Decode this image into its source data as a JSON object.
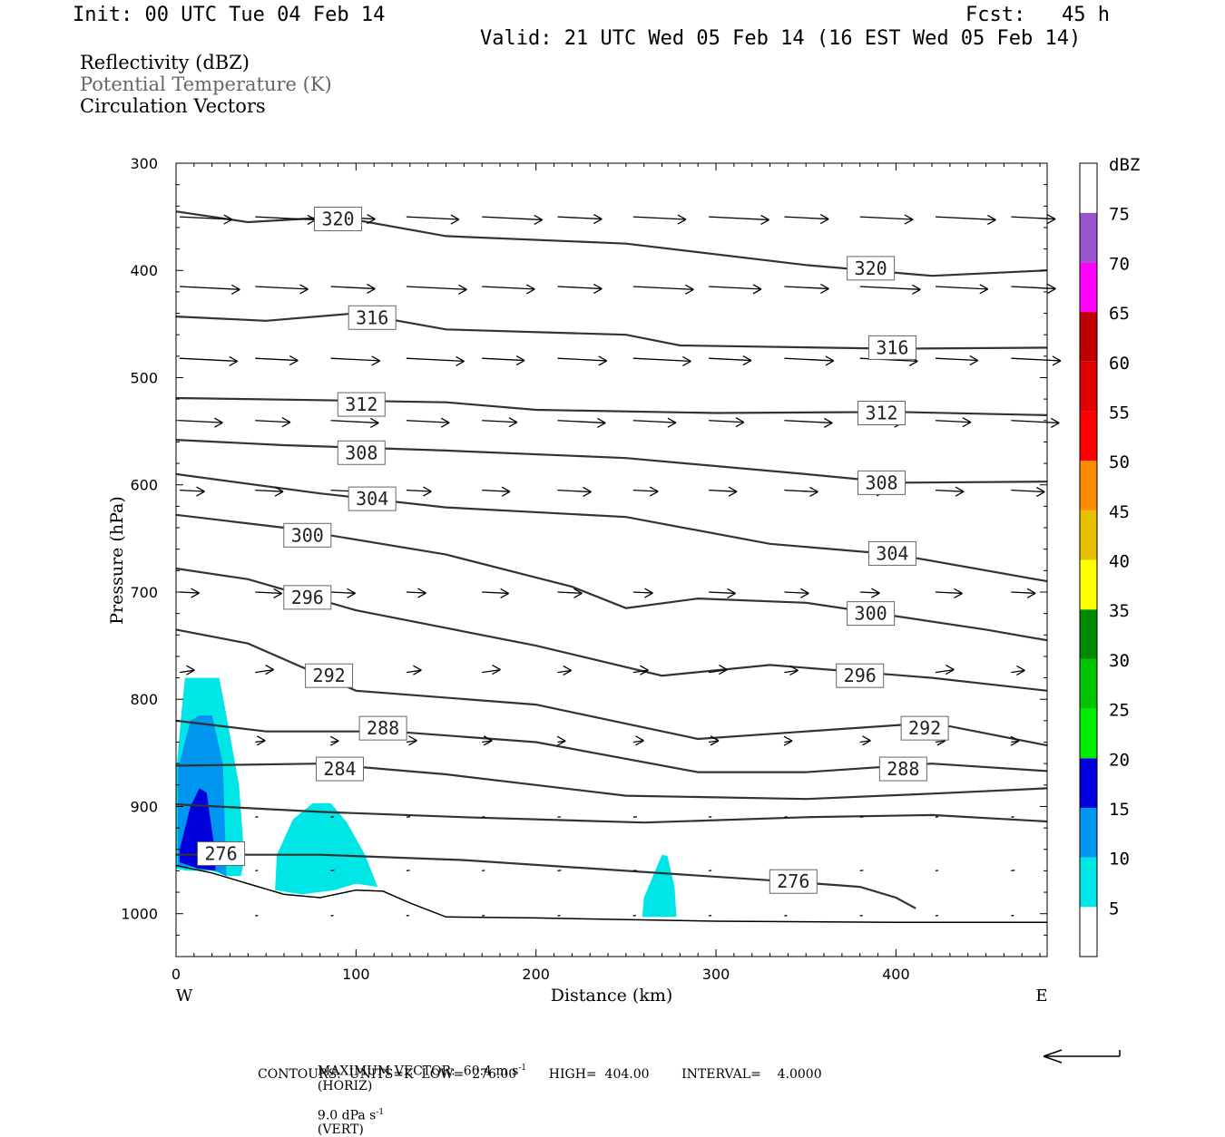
{
  "header": {
    "init": "Init: 00 UTC Tue 04 Feb 14",
    "fcst": "Fcst:   45 h",
    "valid": "Valid: 21 UTC Wed 05 Feb 14 (16 EST Wed 05 Feb 14)",
    "fields": [
      {
        "label": "Reflectivity (dBZ)",
        "color": "#000000"
      },
      {
        "label": "Potential Temperature (K)",
        "color": "#666666"
      },
      {
        "label": "Circulation Vectors",
        "color": "#000000"
      }
    ]
  },
  "footer": {
    "max_vector_line": "MAXIMUM VECTOR:  60.4 m s",
    "max_vector_horiz": "(HORIZ)",
    "max_vector_vert": "9.0 dPa s",
    "max_vector_vert_unit": "(VERT)",
    "contours_line": "CONTOURS:  UNITS=K  LOW=  276.00        HIGH=  404.00        INTERVAL=    4.0000"
  },
  "chart_data": {
    "type": "cross-section",
    "xlabel": "Distance (km)",
    "ylabel": "Pressure (hPa)",
    "xlim": [
      0,
      484
    ],
    "ylim": [
      1040,
      300
    ],
    "x_ticks": [
      0,
      100,
      200,
      300,
      400
    ],
    "y_ticks": [
      300,
      400,
      500,
      600,
      700,
      800,
      900,
      1000
    ],
    "x_end_labels": {
      "left": "W",
      "right": "E"
    },
    "colorbar": {
      "unit": "dBZ",
      "levels": [
        5,
        10,
        15,
        20,
        25,
        30,
        35,
        40,
        45,
        50,
        55,
        60,
        65,
        70,
        75
      ],
      "colors": [
        "#00e5e5",
        "#0095ee",
        "#0000dd",
        "#00ee00",
        "#00c400",
        "#008a00",
        "#ffff00",
        "#e8c000",
        "#ff8c00",
        "#ff0000",
        "#e00000",
        "#c00000",
        "#ff00ff",
        "#9a55cc"
      ]
    },
    "theta_contours": [
      {
        "value": 320,
        "label_at": [
          [
            90,
            352
          ],
          [
            386,
            398
          ]
        ],
        "points": [
          [
            0,
            345
          ],
          [
            40,
            355
          ],
          [
            90,
            350
          ],
          [
            150,
            368
          ],
          [
            250,
            375
          ],
          [
            350,
            395
          ],
          [
            420,
            405
          ],
          [
            484,
            400
          ]
        ]
      },
      {
        "value": 316,
        "label_at": [
          [
            109,
            444
          ],
          [
            398,
            472
          ]
        ],
        "points": [
          [
            0,
            443
          ],
          [
            50,
            447
          ],
          [
            100,
            440
          ],
          [
            150,
            455
          ],
          [
            250,
            460
          ],
          [
            280,
            470
          ],
          [
            400,
            473
          ],
          [
            484,
            472
          ]
        ]
      },
      {
        "value": 312,
        "label_at": [
          [
            103,
            525
          ],
          [
            392,
            533
          ]
        ],
        "points": [
          [
            0,
            519
          ],
          [
            80,
            521
          ],
          [
            150,
            523
          ],
          [
            200,
            530
          ],
          [
            300,
            533
          ],
          [
            400,
            532
          ],
          [
            484,
            535
          ]
        ]
      },
      {
        "value": 308,
        "label_at": [
          [
            103,
            570
          ],
          [
            392,
            598
          ]
        ],
        "points": [
          [
            0,
            558
          ],
          [
            60,
            563
          ],
          [
            150,
            568
          ],
          [
            250,
            575
          ],
          [
            350,
            590
          ],
          [
            400,
            598
          ],
          [
            484,
            597
          ]
        ]
      },
      {
        "value": 304,
        "label_at": [
          [
            109,
            613
          ],
          [
            398,
            664
          ]
        ],
        "points": [
          [
            0,
            590
          ],
          [
            80,
            608
          ],
          [
            150,
            621
          ],
          [
            250,
            630
          ],
          [
            330,
            655
          ],
          [
            400,
            665
          ],
          [
            484,
            690
          ]
        ]
      },
      {
        "value": 300,
        "label_at": [
          [
            73,
            647
          ],
          [
            386,
            720
          ]
        ],
        "points": [
          [
            0,
            628
          ],
          [
            60,
            640
          ],
          [
            150,
            665
          ],
          [
            220,
            695
          ],
          [
            250,
            715
          ],
          [
            290,
            706
          ],
          [
            350,
            710
          ],
          [
            450,
            735
          ],
          [
            484,
            745
          ]
        ]
      },
      {
        "value": 296,
        "label_at": [
          [
            73,
            705
          ],
          [
            380,
            778
          ]
        ],
        "points": [
          [
            0,
            678
          ],
          [
            40,
            688
          ],
          [
            100,
            717
          ],
          [
            200,
            750
          ],
          [
            270,
            778
          ],
          [
            330,
            768
          ],
          [
            420,
            780
          ],
          [
            484,
            792
          ]
        ]
      },
      {
        "value": 292,
        "label_at": [
          [
            85,
            778
          ],
          [
            416,
            827
          ]
        ],
        "points": [
          [
            0,
            735
          ],
          [
            40,
            748
          ],
          [
            100,
            792
          ],
          [
            200,
            805
          ],
          [
            290,
            837
          ],
          [
            350,
            830
          ],
          [
            420,
            822
          ],
          [
            484,
            843
          ]
        ]
      },
      {
        "value": 288,
        "label_at": [
          [
            115,
            827
          ],
          [
            404,
            865
          ]
        ],
        "points": [
          [
            0,
            820
          ],
          [
            50,
            830
          ],
          [
            120,
            830
          ],
          [
            200,
            840
          ],
          [
            290,
            868
          ],
          [
            350,
            868
          ],
          [
            420,
            860
          ],
          [
            484,
            867
          ]
        ]
      },
      {
        "value": 284,
        "label_at": [
          [
            91,
            865
          ]
        ],
        "points": [
          [
            0,
            862
          ],
          [
            80,
            860
          ],
          [
            150,
            870
          ],
          [
            250,
            890
          ],
          [
            350,
            893
          ],
          [
            420,
            888
          ],
          [
            484,
            883
          ]
        ]
      },
      {
        "value": 280,
        "points": [
          [
            0,
            898
          ],
          [
            80,
            905
          ],
          [
            160,
            910
          ],
          [
            260,
            915
          ],
          [
            350,
            910
          ],
          [
            420,
            908
          ],
          [
            484,
            914
          ]
        ]
      },
      {
        "value": 276,
        "label_at": [
          [
            25,
            944
          ],
          [
            343,
            970
          ]
        ],
        "points": [
          [
            0,
            945
          ],
          [
            80,
            945
          ],
          [
            160,
            950
          ],
          [
            250,
            960
          ],
          [
            340,
            970
          ],
          [
            380,
            975
          ],
          [
            400,
            985
          ],
          [
            411,
            995
          ]
        ]
      }
    ],
    "reflectivity_cells": [
      {
        "x_center": 18,
        "dbz_max": 15
      },
      {
        "x_center": 80,
        "dbz_max": 5
      },
      {
        "x_center": 270,
        "dbz_max": 5
      }
    ]
  },
  "colors": {
    "contour": "#333333",
    "axis": "#000000",
    "background": "#ffffff"
  }
}
